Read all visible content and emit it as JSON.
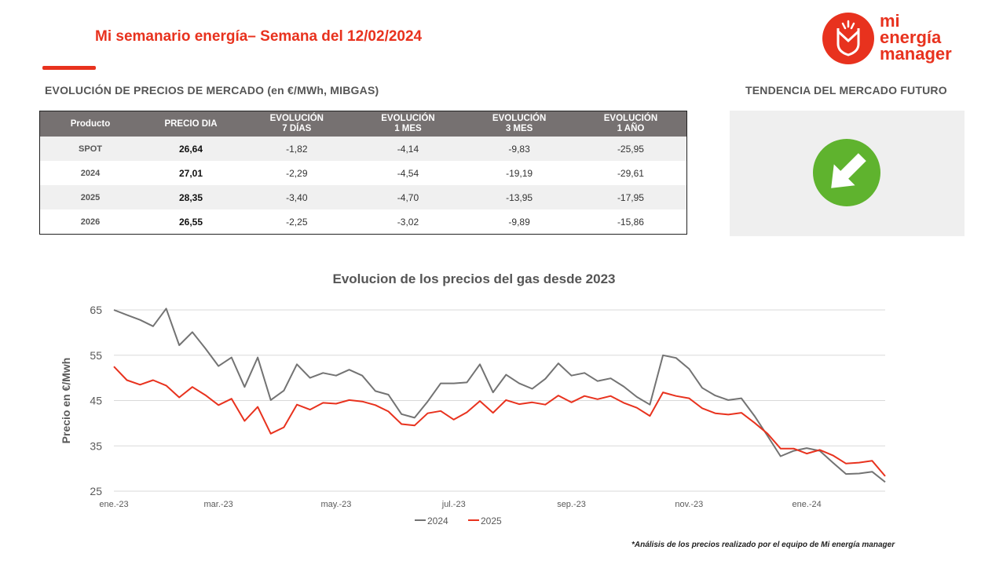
{
  "header": {
    "title": "Mi semanario energía– Semana del 12/02/2024",
    "logo_lines": [
      "mi",
      "energía",
      "manager"
    ]
  },
  "market_table": {
    "section_title": "EVOLUCIÓN DE PRECIOS DE MERCADO (en €/MWh, MIBGAS)",
    "headers": [
      {
        "line1": "Producto",
        "line2": ""
      },
      {
        "line1": "PRECIO DIA",
        "line2": ""
      },
      {
        "line1": "EVOLUCIÓN",
        "line2": "7 DÍAS"
      },
      {
        "line1": "EVOLUCIÓN",
        "line2": "1 MES"
      },
      {
        "line1": "EVOLUCIÓN",
        "line2": "3 MES"
      },
      {
        "line1": "EVOLUCIÓN",
        "line2": "1 AÑO"
      }
    ],
    "rows": [
      {
        "product": "SPOT",
        "price": "26,64",
        "d7": "-1,82",
        "m1": "-4,14",
        "m3": "-9,83",
        "y1": "-25,95"
      },
      {
        "product": "2024",
        "price": "27,01",
        "d7": "-2,29",
        "m1": "-4,54",
        "m3": "-19,19",
        "y1": "-29,61"
      },
      {
        "product": "2025",
        "price": "28,35",
        "d7": "-3,40",
        "m1": "-4,70",
        "m3": "-13,95",
        "y1": "-17,95"
      },
      {
        "product": "2026",
        "price": "26,55",
        "d7": "-2,25",
        "m1": "-3,02",
        "m3": "-9,89",
        "y1": "-15,86"
      }
    ]
  },
  "trend": {
    "section_title": "TENDENCIA DEL MERCADO FUTURO",
    "direction": "down",
    "icon": "down-right-arrow-icon",
    "color": "#5fb32e"
  },
  "chart_data": {
    "type": "line",
    "title": "Evolucion de los precios del gas desde 2023",
    "ylabel": "Precio en €/Mwh",
    "xlabel": "",
    "ylim": [
      25,
      65
    ],
    "yticks": [
      25,
      35,
      45,
      55,
      65
    ],
    "grid": true,
    "legend_position": "bottom",
    "x_ticks": [
      {
        "label": "ene.-23",
        "index": 0
      },
      {
        "label": "mar.-23",
        "index": 8
      },
      {
        "label": "may.-23",
        "index": 17
      },
      {
        "label": "jul.-23",
        "index": 26
      },
      {
        "label": "sep.-23",
        "index": 35
      },
      {
        "label": "nov.-23",
        "index": 44
      },
      {
        "label": "ene.-24",
        "index": 53
      }
    ],
    "series": [
      {
        "name": "2024",
        "color": "#737373",
        "values": [
          65,
          63.9,
          62.8,
          61.4,
          65.3,
          57.2,
          60.1,
          56.5,
          52.6,
          54.5,
          48.0,
          54.5,
          45.1,
          47.2,
          53.0,
          50.0,
          51.1,
          50.5,
          51.8,
          50.5,
          47.1,
          46.3,
          42.0,
          41.2,
          44.8,
          48.8,
          48.8,
          49.0,
          53.0,
          46.8,
          50.7,
          48.8,
          47.6,
          49.8,
          53.2,
          50.5,
          51.1,
          49.3,
          49.9,
          48.1,
          45.8,
          44.1,
          55.0,
          54.4,
          52.0,
          47.8,
          46.1,
          45.1,
          45.5,
          41.6,
          37.2,
          32.7,
          33.9,
          34.5,
          33.9,
          31.3,
          28.8,
          28.9,
          29.3,
          27.0
        ]
      },
      {
        "name": "2025",
        "color": "#e8321e",
        "values": [
          52.5,
          49.5,
          48.5,
          49.5,
          48.3,
          45.7,
          48.0,
          46.2,
          44.0,
          45.4,
          40.5,
          43.6,
          37.7,
          39.1,
          44.1,
          43.0,
          44.5,
          44.3,
          45.1,
          44.8,
          44.0,
          42.6,
          39.8,
          39.5,
          42.2,
          42.7,
          40.8,
          42.4,
          44.9,
          42.3,
          45.1,
          44.2,
          44.6,
          44.1,
          46.1,
          44.6,
          46.0,
          45.3,
          46.0,
          44.5,
          43.4,
          41.6,
          46.8,
          46.0,
          45.5,
          43.3,
          42.2,
          41.9,
          42.3,
          40.1,
          37.7,
          34.4,
          34.4,
          33.3,
          34.1,
          32.9,
          31.1,
          31.3,
          31.7,
          28.3
        ]
      }
    ]
  },
  "footnote": "*Análisis de los precios realizado por el equipo de Mi energía manager"
}
